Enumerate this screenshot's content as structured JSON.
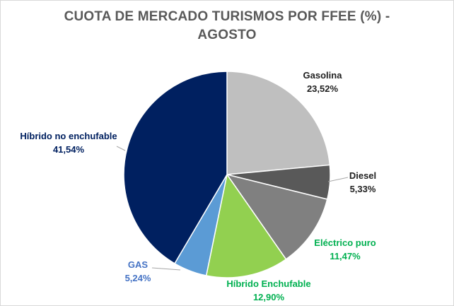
{
  "chart_data": {
    "type": "pie",
    "title_line1": "CUOTA DE MERCADO TURISMOS POR FFEE (%)  -",
    "title_line2": "AGOSTO",
    "start_angle_deg": 0,
    "direction": "clockwise",
    "slices": [
      {
        "name": "Gasolina",
        "value": 23.52,
        "label": "23,52%",
        "color": "#bfbfbf",
        "label_color": "#1f1f1f",
        "key": "gasolina"
      },
      {
        "name": "Diesel",
        "value": 5.33,
        "label": "5,33%",
        "color": "#595959",
        "label_color": "#1f1f1f",
        "key": "diesel"
      },
      {
        "name": "Eléctrico puro",
        "value": 11.47,
        "label": "11,47%",
        "color": "#808080",
        "label_color": "#00b050",
        "key": "electrico-puro"
      },
      {
        "name": "Híbrido Enchufable",
        "value": 12.9,
        "label": "12,90%",
        "color": "#92d050",
        "label_color": "#00b050",
        "key": "hibrido-enchufable"
      },
      {
        "name": "GAS",
        "value": 5.24,
        "label": "5,24%",
        "color": "#5b9bd5",
        "label_color": "#4472c4",
        "key": "gas"
      },
      {
        "name": "Híbrido no enchufable",
        "value": 41.54,
        "label": "41,54%",
        "color": "#002060",
        "label_color": "#002060",
        "key": "hibrido-no-enchufable"
      }
    ],
    "legend": "none"
  }
}
